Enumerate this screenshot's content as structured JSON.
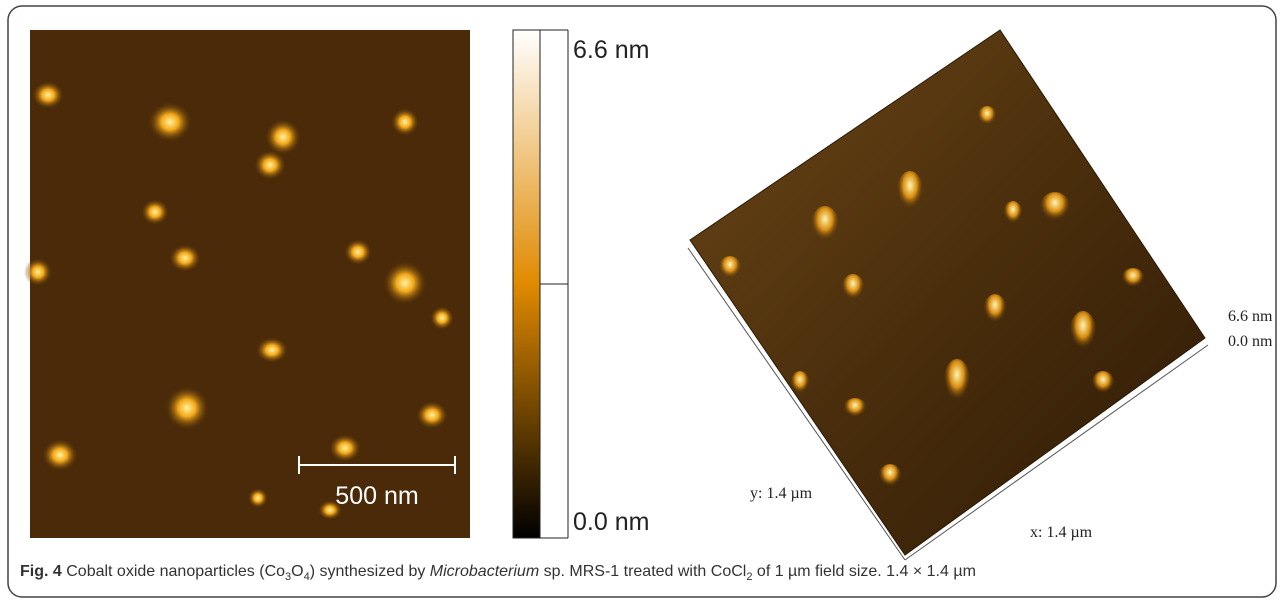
{
  "figure": {
    "afm_image": {
      "scale_bar_label": "500 nm"
    },
    "colorbar": {
      "max_label": "6.6 nm",
      "min_label": "0.0 nm"
    },
    "three_d_view": {
      "z_max_label": "6.6 nm",
      "z_min_label": "0.0 nm",
      "y_label": "y: 1.4 µm",
      "x_label": "x: 1.4 µm"
    },
    "caption": {
      "label": "Fig. 4",
      "parts": [
        "Cobalt oxide nanoparticles (Co",
        "3",
        "O",
        "4",
        ") synthesized by ",
        "Microbacterium",
        " sp. MRS-1 treated with CoCl",
        "2",
        " of 1 µm field size. 1.4 × 1.4 µm"
      ]
    }
  }
}
